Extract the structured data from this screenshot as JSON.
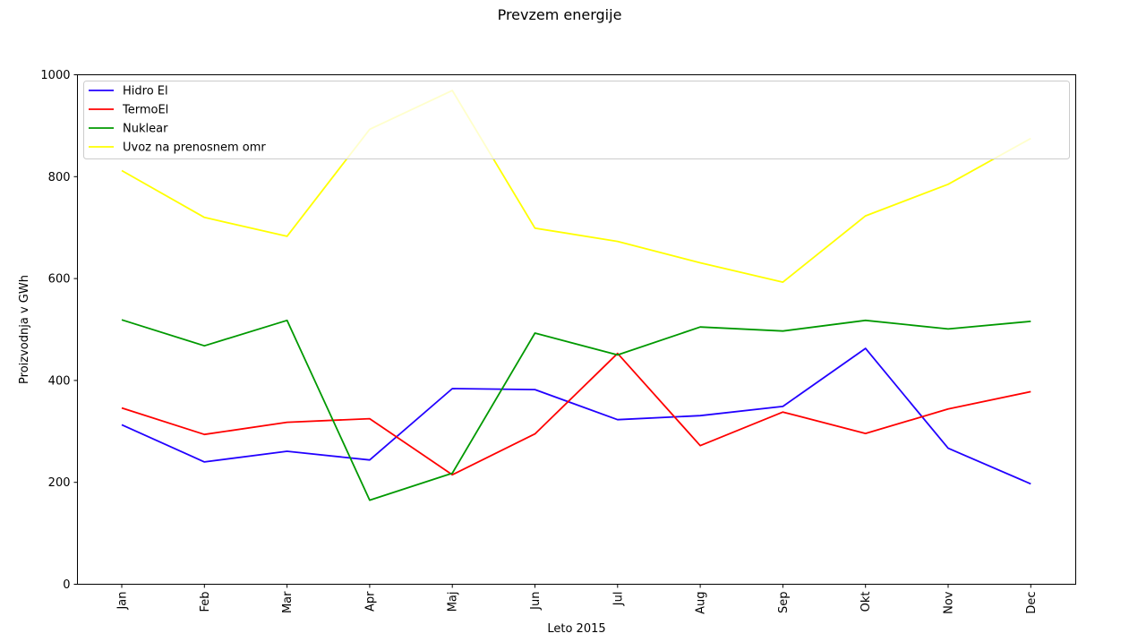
{
  "chart_data": {
    "type": "line",
    "title": "Prevzem energije",
    "xlabel": "Leto 2015",
    "ylabel": "Proizvodnja v GWh",
    "categories": [
      "Jan",
      "Feb",
      "Mar",
      "Apr",
      "Maj",
      "Jun",
      "Jul",
      "Aug",
      "Sep",
      "Okt",
      "Nov",
      "Dec"
    ],
    "ylim": [
      0,
      1000
    ],
    "yticks": [
      0,
      200,
      400,
      600,
      800,
      1000
    ],
    "grid": false,
    "legend_position": "top",
    "series": [
      {
        "name": "Hidro El",
        "color": "#2200ff",
        "values": [
          313,
          240,
          261,
          244,
          384,
          382,
          323,
          331,
          349,
          463,
          267,
          197
        ]
      },
      {
        "name": "TermoEl",
        "color": "#ff0000",
        "values": [
          346,
          294,
          318,
          325,
          215,
          295,
          453,
          272,
          338,
          296,
          344,
          378
        ]
      },
      {
        "name": "Nuklear",
        "color": "#009900",
        "values": [
          519,
          468,
          518,
          165,
          218,
          493,
          450,
          505,
          497,
          518,
          501,
          516
        ]
      },
      {
        "name": "Uvoz na prenosnem omr",
        "color": "#ffff00",
        "values": [
          812,
          720,
          683,
          893,
          969,
          699,
          673,
          631,
          593,
          723,
          785,
          875
        ]
      }
    ]
  }
}
